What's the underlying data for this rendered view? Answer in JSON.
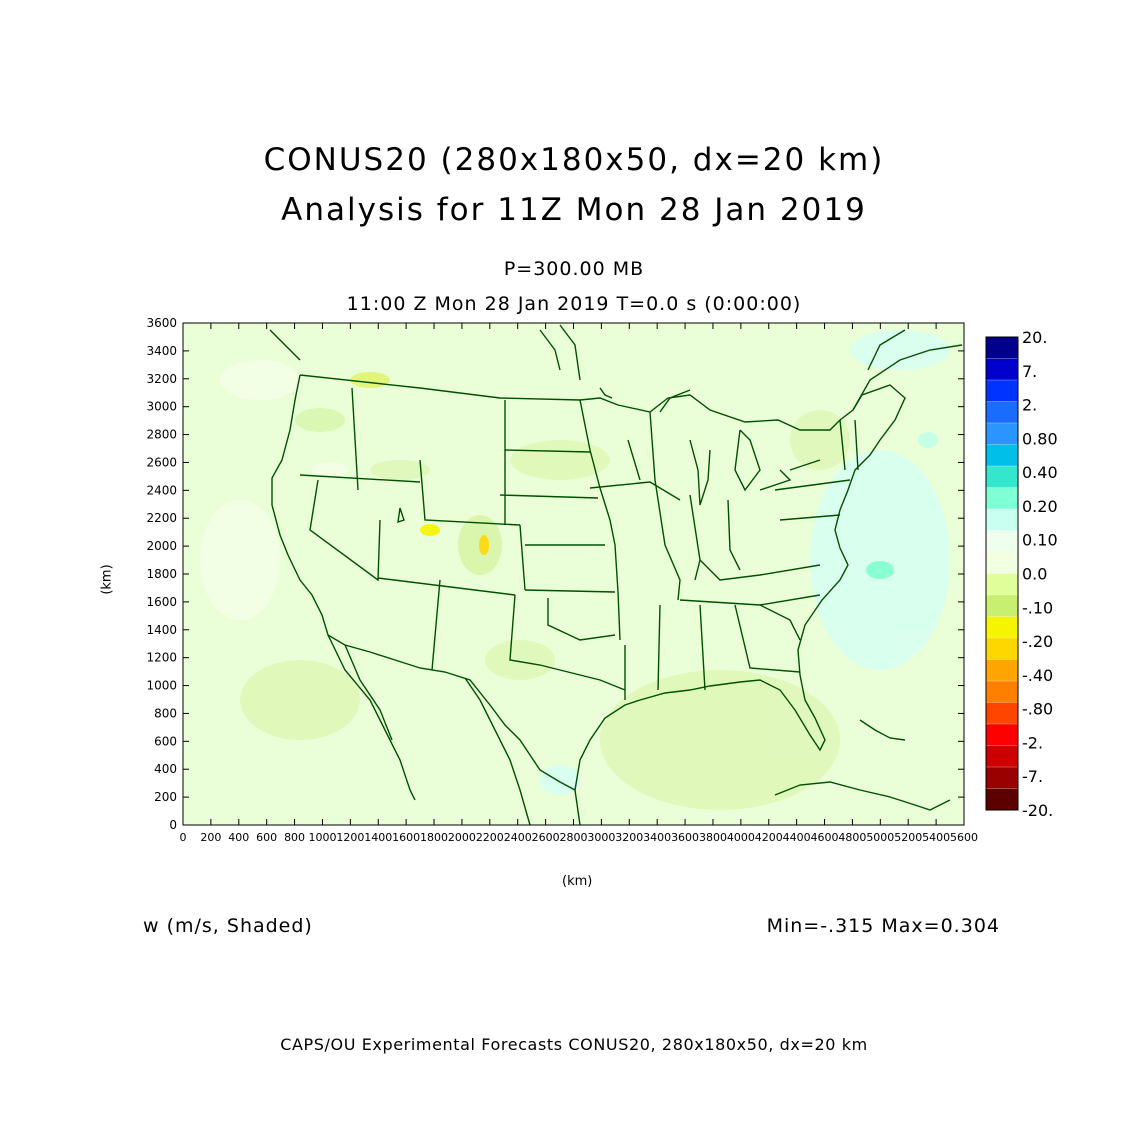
{
  "title": {
    "line1": "CONUS20 (280x180x50, dx=20 km)",
    "line2": "Analysis for 11Z Mon 28 Jan 2019"
  },
  "subtitle": {
    "level": "P=300.00 MB",
    "time": "11:00 Z Mon 28 Jan 2019    T=0.0 s (0:00:00)"
  },
  "axes": {
    "x_label": "(km)",
    "y_label": "(km)",
    "x_range": [
      0,
      5600
    ],
    "y_range": [
      0,
      3600
    ],
    "x_ticks": [
      "0",
      "200",
      "400",
      "600",
      "800",
      "1000",
      "1200",
      "1400",
      "1600",
      "1800",
      "2000",
      "2200",
      "2400",
      "2600",
      "2800",
      "3000",
      "3200",
      "3400",
      "3600",
      "3800",
      "4000",
      "4200",
      "4400",
      "4600",
      "4800",
      "5000",
      "5200",
      "5400",
      "5600"
    ],
    "y_ticks": [
      "0",
      "200",
      "400",
      "600",
      "800",
      "1000",
      "1200",
      "1400",
      "1600",
      "1800",
      "2000",
      "2200",
      "2400",
      "2600",
      "2800",
      "3000",
      "3200",
      "3400",
      "3600"
    ]
  },
  "field_label": "w (m/s, Shaded)",
  "min_max": "Min=-.315  Max=0.304",
  "footer": "CAPS/OU Experimental Forecasts  CONUS20, 280x180x50, dx=20 km",
  "colorbar": {
    "labels": [
      "20.",
      "7.",
      "2.",
      "0.80",
      "0.40",
      "0.20",
      "0.10",
      "0.0",
      "-.10",
      "-.20",
      "-.40",
      "-.80",
      "-2.",
      "-7.",
      "-20."
    ],
    "colors": [
      "#00008b",
      "#0000cd",
      "#0033ff",
      "#1a6cff",
      "#2a95ff",
      "#00bfe8",
      "#33e6cc",
      "#7fffd4",
      "#c8fff0",
      "#eeffee",
      "#f2ffe0",
      "#e0ff9a",
      "#c8f070",
      "#f5f500",
      "#ffd700",
      "#ffa500",
      "#ff7f00",
      "#ff4500",
      "#ff0000",
      "#cc0000",
      "#990000",
      "#5c0000"
    ]
  },
  "colors": {
    "background_field": "#eaffd8",
    "boundary_lines": "#005000"
  }
}
